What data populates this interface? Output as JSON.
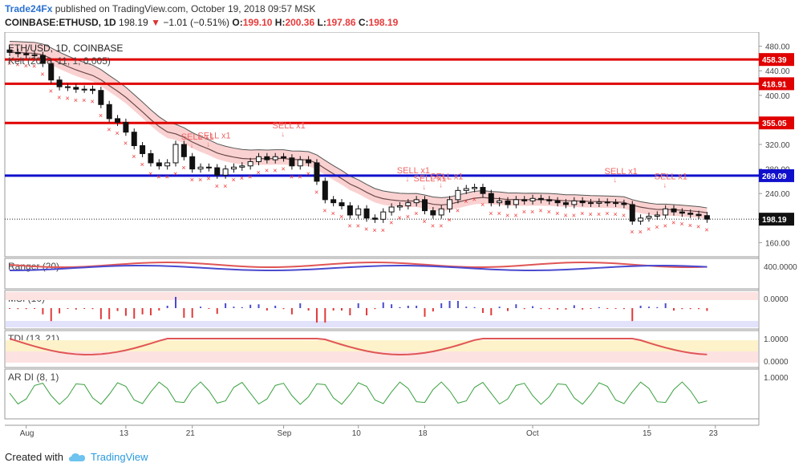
{
  "header": {
    "publisher": "Trade24Fx",
    "published_text": "published on TradingView.com, October 19, 2018 09:57 MSK",
    "symbol": "COINBASE:ETHUSD, 1D",
    "last": "198.19",
    "change_arrow": "▼",
    "change": "−1.01 (−0.51%)",
    "o_label": "O:",
    "o_value": "199.10",
    "h_label": "H:",
    "h_value": "200.36",
    "l_label": "L:",
    "l_value": "197.86",
    "c_label": "C:",
    "c_value": "198.19"
  },
  "footer": {
    "created_with": "Created with",
    "brand": "TradingView"
  },
  "chart_data": {
    "type": "candlestick",
    "title": "ETH/USD, 1D, COINBASE",
    "indicator_label": "Kelt (20, 8, 11, 1, 0.005)",
    "ylim": [
      150,
      490
    ],
    "y_ticks": [
      160,
      200,
      240,
      280,
      320,
      360,
      400,
      440,
      480
    ],
    "y_tick_labels": [
      "160.00",
      "200.00",
      "240.00",
      "280.00",
      "320.00",
      "360.00",
      "400.00",
      "440.00",
      "480.00"
    ],
    "x_ticks": [
      {
        "day": 2,
        "label": "Aug"
      },
      {
        "day": 14,
        "label": "13"
      },
      {
        "day": 22,
        "label": "21"
      },
      {
        "day": 33,
        "label": "Sep"
      },
      {
        "day": 42,
        "label": "10"
      },
      {
        "day": 50,
        "label": "18"
      },
      {
        "day": 63,
        "label": "Oct"
      },
      {
        "day": 77,
        "label": "15"
      },
      {
        "day": 85,
        "label": "23"
      }
    ],
    "horizontal_levels": [
      {
        "value": 458.39,
        "label": "458.39",
        "color": "#e00000"
      },
      {
        "value": 418.91,
        "label": "418.91",
        "color": "#e00000"
      },
      {
        "value": 355.05,
        "label": "355.05",
        "color": "#e00000"
      },
      {
        "value": 269.09,
        "label": "269.09",
        "color": "#1010cc"
      }
    ],
    "last_price": {
      "value": 198.19,
      "label": "198.19"
    },
    "closes": [
      470,
      468,
      466,
      465,
      452,
      425,
      414,
      413,
      410,
      410,
      408,
      385,
      362,
      356,
      340,
      318,
      305,
      290,
      285,
      290,
      320,
      300,
      280,
      283,
      282,
      270,
      280,
      283,
      285,
      292,
      300,
      295,
      300,
      298,
      285,
      295,
      290,
      260,
      230,
      225,
      220,
      205,
      215,
      200,
      198,
      210,
      218,
      220,
      225,
      230,
      212,
      205,
      215,
      230,
      245,
      248,
      250,
      240,
      225,
      228,
      222,
      230,
      228,
      232,
      230,
      228,
      225,
      222,
      228,
      225,
      224,
      226,
      225,
      224,
      222,
      195,
      200,
      203,
      205,
      215,
      210,
      208,
      206,
      204,
      198.19
    ],
    "sell_signals": [
      {
        "day": 22,
        "label": "SELL x1"
      },
      {
        "day": 24,
        "label": "SELL x1"
      },
      {
        "day": 33,
        "label": "SELL x1"
      },
      {
        "day": 48,
        "label": "SELL x1"
      },
      {
        "day": 50,
        "label": "SELL x1"
      },
      {
        "day": 52,
        "label": "SELL x1"
      },
      {
        "day": 73,
        "label": "SELL x1"
      },
      {
        "day": 79,
        "label": "SELL x1"
      }
    ],
    "panels": [
      {
        "name": "Ranger (20)",
        "tick_labels": [
          "400.0000"
        ]
      },
      {
        "name": "MSI (10)",
        "tick_labels": [
          "0.0000"
        ]
      },
      {
        "name": "TDI (13, 21)",
        "tick_labels": [
          "1.0000",
          "0.0000"
        ]
      },
      {
        "name": "AR DI (8, 1)",
        "tick_labels": [
          "1.0000"
        ]
      }
    ],
    "colors": {
      "up": "#ffffff",
      "down": "#111111",
      "kelt_fill": "#f9c9c9",
      "kelt_fill_up": "#c9ecc9",
      "sell": "#e66",
      "cross": "#e33"
    }
  }
}
